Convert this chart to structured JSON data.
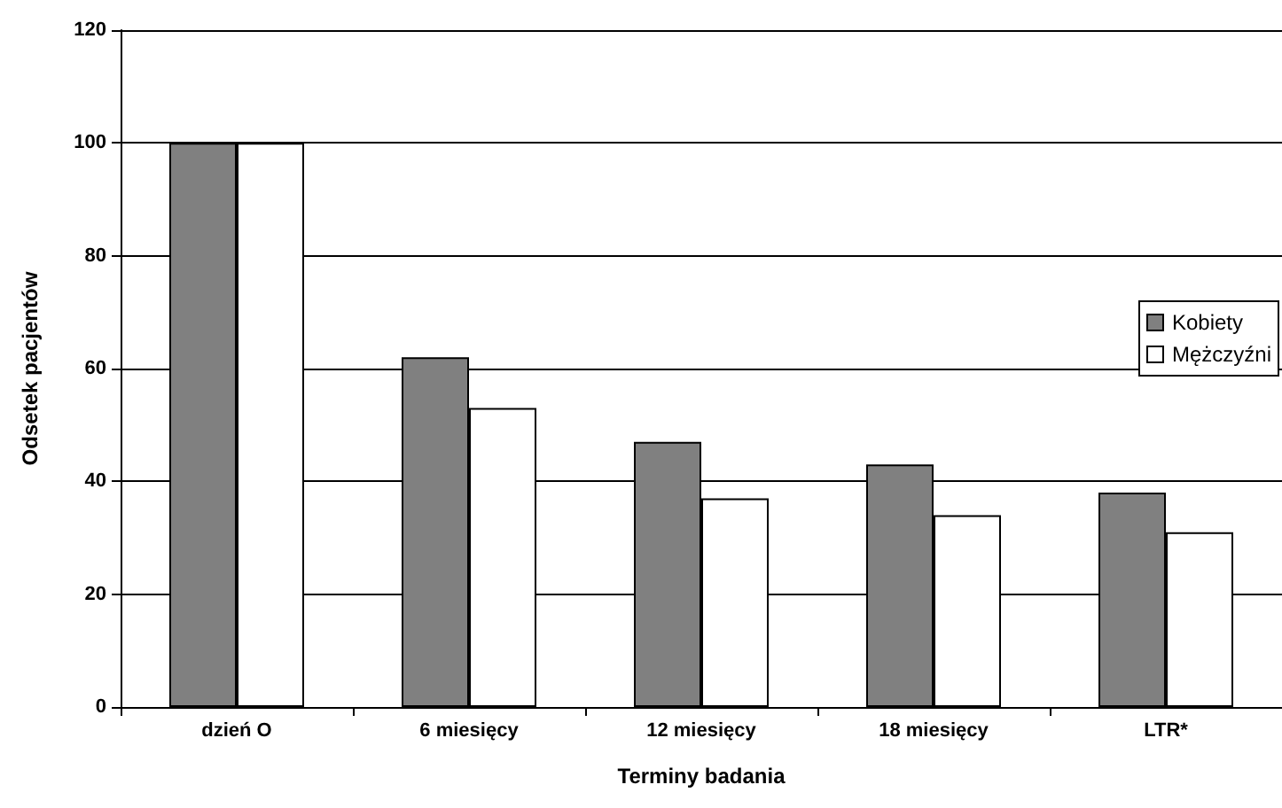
{
  "chart_data": {
    "type": "bar",
    "xlabel": "Terminy badania",
    "ylabel": "Odsetek pacjentów",
    "categories": [
      "dzień O",
      "6 miesięcy",
      "12 miesięcy",
      "18 miesięcy",
      "LTR*"
    ],
    "series": [
      {
        "name": "Kobiety",
        "color": "#808080",
        "values": [
          100,
          62,
          47,
          43,
          38
        ]
      },
      {
        "name": "Mężczyźni",
        "color": "#ffffff",
        "values": [
          100,
          53,
          37,
          34,
          31
        ]
      }
    ],
    "ylim": [
      0,
      120
    ],
    "yticks": [
      0,
      20,
      40,
      60,
      80,
      100,
      120
    ],
    "grid": "y",
    "legend": "right"
  }
}
